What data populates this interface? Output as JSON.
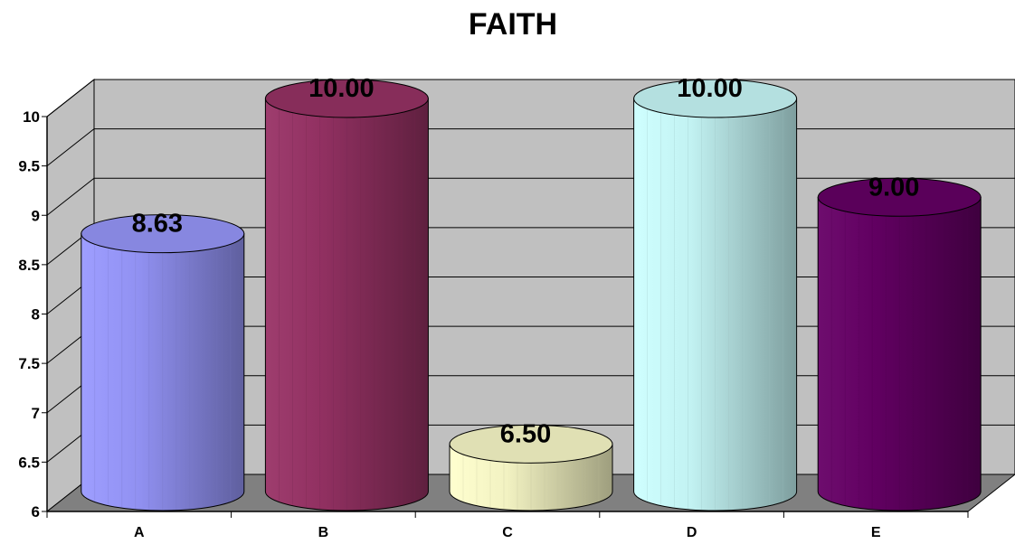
{
  "chart_data": {
    "type": "bar",
    "style": "3d-cylinder",
    "title": "FAITH",
    "xlabel": "",
    "ylabel": "",
    "categories": [
      "A",
      "B",
      "C",
      "D",
      "E"
    ],
    "values": [
      8.63,
      10.0,
      6.5,
      10.0,
      9.0
    ],
    "data_labels": [
      "8.63",
      "10.00",
      "6.50",
      "10.00",
      "9.00"
    ],
    "yticks": [
      6,
      6.5,
      7,
      7.5,
      8,
      8.5,
      9,
      9.5,
      10
    ],
    "ytick_labels": [
      "6",
      "6.5",
      "7",
      "7.5",
      "8",
      "8.5",
      "9",
      "9.5",
      "10"
    ],
    "ylim": [
      6,
      10
    ],
    "grid": true,
    "legend": "none",
    "colors": [
      "#9999ff",
      "#993366",
      "#ffffcc",
      "#ccffff",
      "#660066"
    ],
    "wall_color": "#c0c0c0",
    "floor_color": "#808080"
  }
}
